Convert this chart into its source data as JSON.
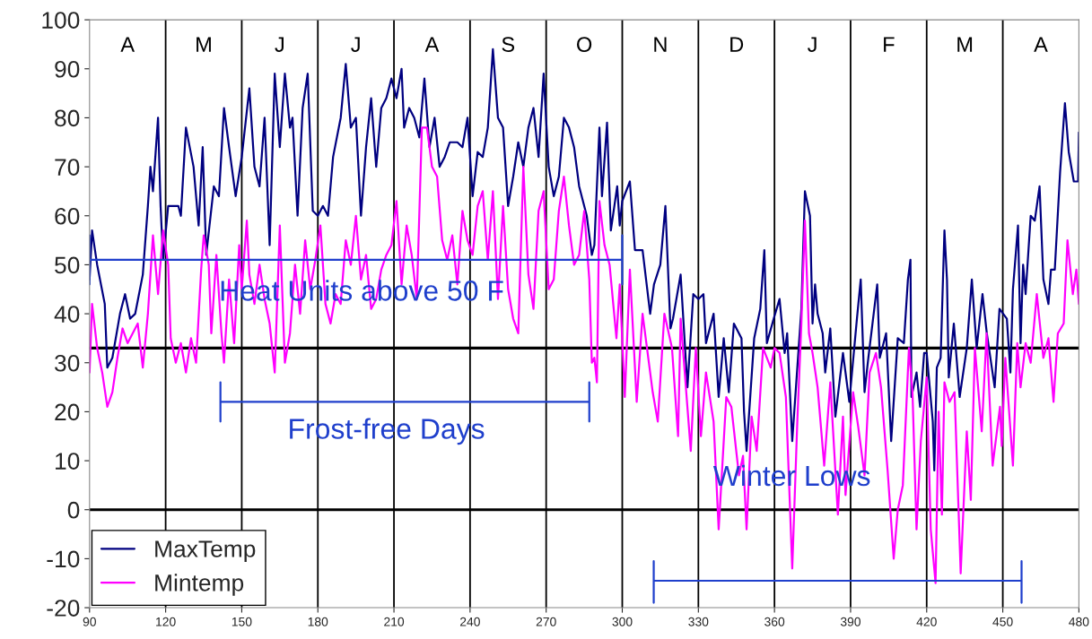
{
  "chart_data": {
    "type": "line",
    "xlim": [
      90,
      480
    ],
    "ylim": [
      -20,
      100
    ],
    "xticks": [
      90,
      120,
      150,
      180,
      210,
      240,
      270,
      300,
      330,
      360,
      390,
      420,
      450,
      480
    ],
    "yticks": [
      -20,
      -10,
      0,
      10,
      20,
      30,
      40,
      50,
      60,
      70,
      80,
      90,
      100
    ],
    "grid": false,
    "legend": "bottom left",
    "marker": "none",
    "line_style": "solid",
    "series": [
      {
        "name": "MaxTemp",
        "color": "#000080",
        "x": [
          90,
          91,
          93,
          96,
          97,
          99,
          102,
          104,
          106,
          108,
          111,
          113,
          114,
          115,
          117,
          118,
          119,
          121,
          123,
          125,
          126,
          128,
          131,
          133,
          134.6,
          136,
          139,
          141,
          143,
          145,
          147.6,
          150,
          153,
          155,
          157,
          159,
          161,
          163,
          165,
          167,
          169,
          170,
          172,
          174,
          176,
          178,
          180,
          182,
          184,
          186,
          189,
          191,
          193,
          195,
          197,
          199,
          201,
          203,
          205,
          207,
          209,
          211,
          213,
          214,
          216,
          218,
          220,
          222,
          224,
          226,
          228,
          230,
          232,
          235,
          237,
          239,
          241,
          243,
          245,
          247,
          249,
          251,
          253,
          255,
          257,
          259,
          261,
          263,
          265,
          267,
          269,
          271,
          273,
          275,
          277,
          279,
          281,
          283,
          286,
          288,
          289,
          291,
          292,
          294,
          295.5,
          298,
          299,
          300,
          303,
          305,
          308,
          311,
          312.5,
          315,
          317,
          319,
          320,
          323,
          325.7,
          328,
          330,
          332,
          333,
          336,
          338,
          340,
          342,
          344,
          347,
          348,
          349,
          352,
          354.4,
          356,
          357,
          359.7,
          362,
          364,
          365,
          367,
          370.6,
          372,
          374,
          375,
          376,
          377,
          379,
          380,
          382,
          384,
          387,
          389.5,
          392.5,
          394,
          395.5,
          397,
          400.5,
          401.5,
          404,
          406,
          408.6,
          411,
          412.6,
          413.6,
          414,
          416,
          417.4,
          419,
          420,
          422.4,
          423,
          424,
          425.5,
          427,
          428,
          428.7,
          430.7,
          433,
          435.8,
          437.8,
          439.7,
          442,
          443.7,
          446.8,
          448.7,
          451.6,
          453,
          454,
          456,
          457,
          458,
          459,
          461,
          462.6,
          464.5,
          466,
          468,
          469,
          470.5,
          472.6,
          474.5,
          476,
          478,
          479.7,
          480
        ],
        "values": [
          47,
          57,
          50,
          42,
          29,
          31,
          40,
          44,
          39,
          40,
          48,
          62,
          70,
          65,
          80,
          62,
          51,
          62,
          62,
          62,
          60,
          78,
          70,
          58,
          74,
          52,
          66,
          64,
          82,
          74,
          64,
          72,
          86,
          70,
          66,
          80,
          54,
          89,
          74,
          89,
          78,
          80,
          60,
          82,
          89,
          61,
          60,
          62,
          60,
          72,
          80,
          91,
          78,
          80,
          60,
          74,
          84,
          70,
          82,
          84,
          88,
          84,
          90,
          78,
          82,
          80,
          76,
          88,
          74,
          80,
          70,
          72,
          75,
          75,
          74,
          80,
          64,
          73,
          72,
          78,
          94,
          80,
          78,
          62,
          68,
          75,
          70,
          78,
          82,
          72,
          89,
          70,
          64,
          68,
          80,
          78,
          74,
          66,
          60,
          52,
          54,
          78,
          64,
          79,
          57,
          66,
          58,
          63,
          67,
          53,
          53,
          40,
          46,
          50,
          62,
          37,
          39,
          48,
          25,
          44,
          43,
          44,
          34,
          40,
          23,
          35,
          24,
          38,
          35,
          20,
          12,
          35,
          41,
          53,
          34,
          39,
          43,
          32,
          36,
          14,
          41,
          65,
          60,
          38,
          46,
          40,
          36,
          28,
          37,
          19,
          32,
          22,
          39,
          47,
          24,
          31,
          46,
          31,
          36,
          14,
          35,
          34,
          47,
          51,
          23,
          28,
          21,
          32,
          32,
          18,
          8,
          29,
          31,
          57,
          47,
          27,
          38,
          23,
          33,
          47,
          33,
          44,
          36,
          25,
          41,
          39,
          28,
          45,
          58,
          34,
          50,
          44,
          60,
          59,
          66,
          47,
          42,
          49,
          49,
          69,
          83,
          73,
          67,
          67,
          77
        ]
      },
      {
        "name": "Mintemp",
        "color": "#ff00ff",
        "x": [
          90,
          91,
          93,
          95,
          97,
          99,
          101,
          103,
          105,
          107,
          109,
          111,
          113,
          115,
          117,
          119,
          121,
          122,
          124,
          126,
          128,
          130,
          132,
          134,
          135,
          137,
          138,
          140,
          142,
          143,
          145,
          147,
          149,
          150,
          152,
          153,
          155,
          157,
          159,
          161,
          163,
          165,
          167,
          169,
          171,
          173,
          175,
          177,
          179,
          181,
          183,
          185,
          187,
          189,
          191,
          193,
          195,
          197,
          199,
          201,
          203,
          205,
          207,
          209,
          211,
          213,
          215,
          217,
          219,
          221,
          223,
          225,
          227,
          229,
          231,
          233,
          235,
          237,
          239,
          241,
          243,
          245,
          247,
          249,
          251,
          253,
          255,
          257,
          259,
          261,
          263,
          265,
          267,
          269,
          271,
          273,
          275,
          277,
          279,
          281,
          283,
          285,
          287,
          288,
          289,
          290,
          291,
          293,
          295,
          297.7,
          299,
          301,
          303,
          305.7,
          308,
          312,
          314,
          316.6,
          319.6,
          322,
          323,
          327,
          329,
          331,
          333,
          336,
          338,
          341,
          343,
          346,
          347.6,
          349,
          351,
          353,
          355.5,
          358.5,
          360,
          362,
          364.5,
          367,
          369,
          370.6,
          372,
          373.6,
          375,
          377,
          379.6,
          382,
          385,
          387,
          388,
          391,
          393,
          395.5,
          397.5,
          400,
          402,
          404.6,
          407,
          408.6,
          410.6,
          413,
          414.4,
          416,
          417.7,
          420,
          421.6,
          423.5,
          424.7,
          426,
          427,
          429,
          431,
          433.4,
          435.8,
          437.4,
          439,
          441.7,
          443.6,
          446,
          448.9,
          449.6,
          451,
          454,
          455.7,
          457,
          459,
          461,
          463.4,
          466,
          468,
          470,
          471.7,
          474,
          475.5,
          477.6,
          479,
          480
        ],
        "values": [
          28,
          42,
          33,
          28,
          21,
          24,
          31,
          37,
          34,
          36,
          38,
          29,
          40,
          56,
          44,
          57,
          50,
          35,
          30,
          34,
          28,
          35,
          30,
          49,
          56,
          50,
          36,
          52,
          36,
          30,
          47,
          34,
          54,
          45,
          59,
          48,
          42,
          50,
          43,
          38,
          28,
          58,
          30,
          36,
          50,
          40,
          55,
          45,
          51,
          58,
          42,
          38,
          44,
          42,
          55,
          50,
          60,
          47,
          52,
          41,
          43,
          49,
          52,
          54,
          63,
          46,
          58,
          52,
          43,
          78,
          78,
          70,
          68,
          55,
          51,
          56,
          46,
          61,
          55,
          52,
          62,
          65,
          51,
          65,
          43,
          62,
          45,
          39,
          36,
          70,
          48,
          41,
          61,
          65,
          45,
          47,
          61,
          68,
          58,
          50,
          52,
          61,
          47,
          30,
          31,
          26,
          63,
          54,
          50,
          35,
          46,
          23,
          49,
          22,
          40,
          24,
          18,
          40,
          33,
          15,
          39,
          12,
          33,
          15,
          28,
          18,
          -4,
          23,
          21,
          7,
          11,
          -4,
          19,
          12,
          33,
          29,
          33,
          32,
          23,
          -12,
          18,
          38,
          59,
          36,
          32,
          25,
          9,
          26,
          -1,
          19,
          3,
          24,
          17,
          7,
          28,
          32,
          25,
          8,
          -10,
          0,
          5,
          33,
          24,
          -4,
          14,
          27,
          -4,
          -15,
          20,
          -1,
          26,
          22,
          24,
          -13,
          16,
          2,
          33,
          16,
          36,
          9,
          21,
          13,
          31,
          9,
          34,
          25,
          34,
          30,
          44,
          31,
          35,
          22,
          36,
          38,
          55,
          44,
          49,
          42
        ]
      },
      {
        "color": "#1f3fcc",
        "x": [
          90,
          90,
          90,
          300,
          300,
          300
        ],
        "values": [
          56,
          46,
          51,
          51,
          56,
          46
        ]
      },
      {
        "color": "#1f3fcc",
        "x": [
          141.6,
          141.6,
          141.6,
          287,
          287,
          287
        ],
        "values": [
          26,
          18,
          22,
          22,
          26,
          18
        ]
      },
      {
        "color": "#1f3fcc",
        "x": [
          312.4,
          312.4,
          312.4,
          457.4,
          457.4,
          457.4
        ],
        "values": [
          -10.5,
          -19,
          -14.5,
          -14.5,
          -10.5,
          -19
        ]
      }
    ],
    "ref_lines": [
      {
        "axis": "y",
        "value": 0,
        "color": "#000000"
      },
      {
        "axis": "y",
        "value": 33,
        "color": "#000000"
      },
      {
        "axis": "x",
        "value": 120,
        "color": "#000000"
      },
      {
        "axis": "x",
        "value": 150,
        "color": "#000000"
      },
      {
        "axis": "x",
        "value": 180,
        "color": "#000000"
      },
      {
        "axis": "x",
        "value": 210,
        "color": "#000000"
      },
      {
        "axis": "x",
        "value": 240,
        "color": "#000000"
      },
      {
        "axis": "x",
        "value": 270,
        "color": "#000000"
      },
      {
        "axis": "x",
        "value": 300,
        "color": "#000000"
      },
      {
        "axis": "x",
        "value": 330,
        "color": "#000000"
      },
      {
        "axis": "x",
        "value": 360,
        "color": "#000000"
      },
      {
        "axis": "x",
        "value": 390,
        "color": "#000000"
      },
      {
        "axis": "x",
        "value": 420,
        "color": "#000000"
      },
      {
        "axis": "x",
        "value": 450,
        "color": "#000000"
      }
    ],
    "annotations": [
      "A",
      "M",
      "J",
      "J",
      "A",
      "S",
      "O",
      "N",
      "D",
      "J",
      "F",
      "M",
      "A",
      "Heat Units above 50 F",
      "Frost-free Days",
      "Winter Lows"
    ]
  }
}
